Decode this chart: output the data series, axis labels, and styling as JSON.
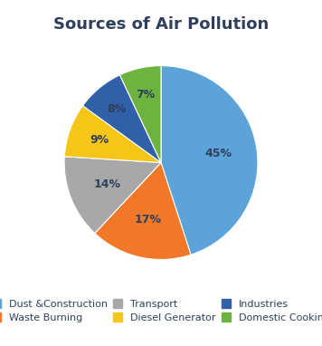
{
  "title": "Sources of Air Pollution",
  "slices": [
    45,
    17,
    14,
    9,
    8,
    7
  ],
  "labels": [
    "Dust &Construction",
    "Waste Burning",
    "Transport",
    "Diesel Generator",
    "Industries",
    "Domestic Cooking"
  ],
  "colors": [
    "#5BA3D9",
    "#F07828",
    "#A8A8A8",
    "#F5C518",
    "#3060A8",
    "#6DB33F"
  ],
  "pct_labels": [
    "45%",
    "17%",
    "14%",
    "9%",
    "8%",
    "7%"
  ],
  "startangle": 90,
  "counterclock": false,
  "title_fontsize": 13,
  "pct_fontsize": 9,
  "legend_fontsize": 8,
  "background_color": "#ffffff",
  "title_color": "#2F3F5C",
  "pct_color": "#2F3F5C",
  "legend_order": [
    0,
    1,
    2,
    3,
    4,
    5
  ]
}
